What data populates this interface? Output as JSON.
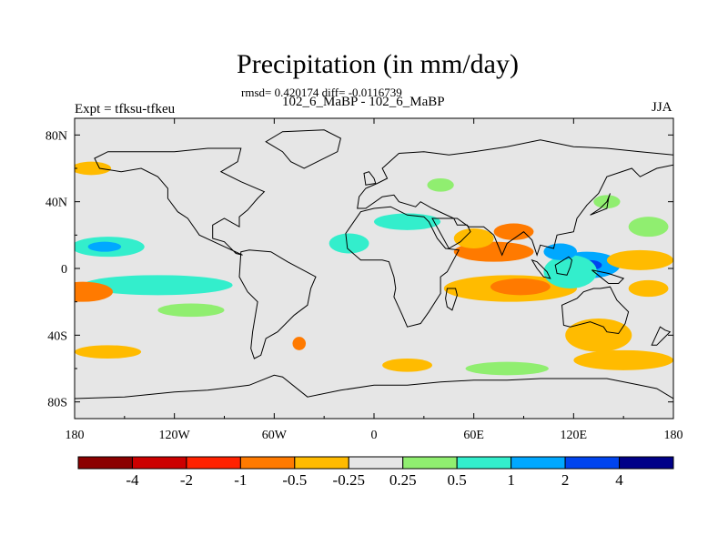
{
  "figure": {
    "title": "Precipitation (in mm/day)",
    "stats": "rmsd= 0.420174 diff= -0.0116739",
    "cases": "102_6_MaBP - 102_6_MaBP",
    "experiment": "Expt = tfksu-tfkeu",
    "season": "JJA"
  },
  "chart_data": {
    "type": "heatmap",
    "title": "Precipitation (in mm/day)",
    "projection": "cylindrical-equidistant",
    "xlim": [
      -180,
      180
    ],
    "ylim": [
      -90,
      90
    ],
    "x_ticks": [
      {
        "value": -180,
        "label": "180"
      },
      {
        "value": -120,
        "label": "120W"
      },
      {
        "value": -60,
        "label": "60W"
      },
      {
        "value": 0,
        "label": "0"
      },
      {
        "value": 60,
        "label": "60E"
      },
      {
        "value": 120,
        "label": "120E"
      },
      {
        "value": 180,
        "label": "180"
      }
    ],
    "y_ticks": [
      {
        "value": 80,
        "label": "80N"
      },
      {
        "value": 40,
        "label": "40N"
      },
      {
        "value": 0,
        "label": "0"
      },
      {
        "value": -40,
        "label": "40S"
      },
      {
        "value": -80,
        "label": "80S"
      }
    ],
    "contour_levels": [
      -4,
      -2,
      -1,
      -0.5,
      -0.25,
      0.25,
      0.5,
      1,
      2,
      4
    ],
    "colorbar_labels": [
      "-4",
      "-2",
      "-1",
      "-0.5",
      "-0.25",
      "0.25",
      "0.5",
      "1",
      "2",
      "4"
    ],
    "colorbar_colors": [
      "#8b0000",
      "#cc0000",
      "#ff2200",
      "#ff7a00",
      "#ffbb00",
      "#e6e6e6",
      "#90ee70",
      "#33eecc",
      "#00a8ff",
      "#0044ee",
      "#000088"
    ],
    "background_color": "#e6e6e6",
    "anomalies": [
      {
        "lon": 82,
        "lat": -12,
        "rx": 40,
        "ry": 8,
        "level": 4
      },
      {
        "lon": 88,
        "lat": -11,
        "rx": 18,
        "ry": 5,
        "level": 3
      },
      {
        "lon": 72,
        "lat": 10,
        "rx": 24,
        "ry": 6,
        "level": 3
      },
      {
        "lon": 84,
        "lat": 22,
        "rx": 12,
        "ry": 5,
        "level": 3
      },
      {
        "lon": 60,
        "lat": 18,
        "rx": 12,
        "ry": 6,
        "level": 4
      },
      {
        "lon": 128,
        "lat": 2,
        "rx": 20,
        "ry": 8,
        "level": 8
      },
      {
        "lon": 130,
        "lat": 2,
        "rx": 7,
        "ry": 3,
        "level": 9
      },
      {
        "lon": 118,
        "lat": -2,
        "rx": 16,
        "ry": 10,
        "level": 7
      },
      {
        "lon": 112,
        "lat": 10,
        "rx": 10,
        "ry": 5,
        "level": 8
      },
      {
        "lon": 20,
        "lat": 28,
        "rx": 20,
        "ry": 5,
        "level": 7
      },
      {
        "lon": -15,
        "lat": 15,
        "rx": 12,
        "ry": 6,
        "level": 7
      },
      {
        "lon": -160,
        "lat": 13,
        "rx": 22,
        "ry": 6,
        "level": 7
      },
      {
        "lon": -162,
        "lat": 13,
        "rx": 10,
        "ry": 3,
        "level": 8
      },
      {
        "lon": -130,
        "lat": -10,
        "rx": 45,
        "ry": 6,
        "level": 7
      },
      {
        "lon": -175,
        "lat": -14,
        "rx": 18,
        "ry": 6,
        "level": 3
      },
      {
        "lon": -110,
        "lat": -25,
        "rx": 20,
        "ry": 4,
        "level": 6
      },
      {
        "lon": -160,
        "lat": -50,
        "rx": 20,
        "ry": 4,
        "level": 4
      },
      {
        "lon": -45,
        "lat": -45,
        "rx": 4,
        "ry": 4,
        "level": 3
      },
      {
        "lon": 135,
        "lat": -40,
        "rx": 20,
        "ry": 10,
        "level": 4
      },
      {
        "lon": 165,
        "lat": -12,
        "rx": 12,
        "ry": 5,
        "level": 4
      },
      {
        "lon": 160,
        "lat": 5,
        "rx": 20,
        "ry": 6,
        "level": 4
      },
      {
        "lon": 165,
        "lat": 25,
        "rx": 12,
        "ry": 6,
        "level": 6
      },
      {
        "lon": 140,
        "lat": 40,
        "rx": 8,
        "ry": 4,
        "level": 6
      },
      {
        "lon": 150,
        "lat": -55,
        "rx": 30,
        "ry": 6,
        "level": 4
      },
      {
        "lon": 80,
        "lat": -60,
        "rx": 25,
        "ry": 4,
        "level": 6
      },
      {
        "lon": -170,
        "lat": 60,
        "rx": 12,
        "ry": 4,
        "level": 4
      },
      {
        "lon": 40,
        "lat": 50,
        "rx": 8,
        "ry": 4,
        "level": 6
      },
      {
        "lon": 20,
        "lat": -58,
        "rx": 15,
        "ry": 4,
        "level": 4
      }
    ]
  }
}
